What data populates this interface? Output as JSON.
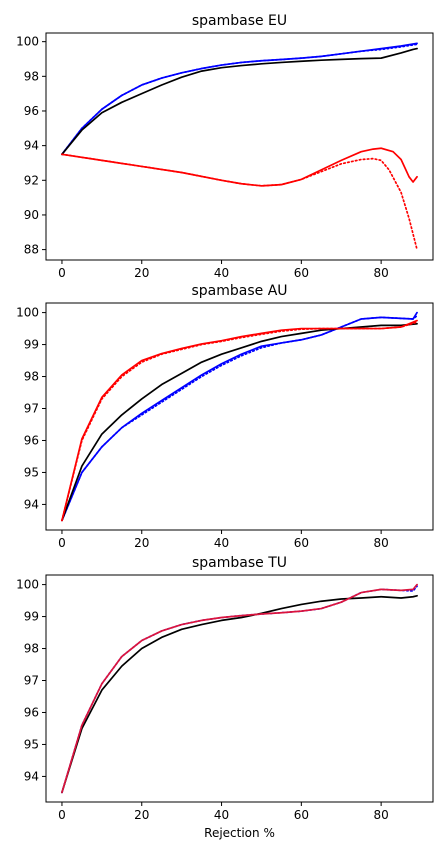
{
  "chart_data": [
    {
      "type": "line",
      "title": "spambase EU",
      "xlabel": "",
      "ylabel": "",
      "xlim": [
        -4,
        93
      ],
      "ylim": [
        87.4,
        100.5
      ],
      "xticks": [
        0,
        20,
        40,
        60,
        80
      ],
      "yticks": [
        88,
        90,
        92,
        94,
        96,
        98,
        100
      ],
      "grid": false,
      "series": [
        {
          "color": "#0000ff",
          "style": "dotted",
          "x": [
            0,
            5,
            10,
            15,
            20,
            25,
            30,
            35,
            40,
            45,
            50,
            55,
            60,
            65,
            70,
            75,
            80,
            85,
            89
          ],
          "y": [
            93.5,
            95.0,
            96.1,
            96.9,
            97.5,
            97.9,
            98.2,
            98.45,
            98.65,
            98.8,
            98.9,
            98.97,
            99.05,
            99.15,
            99.3,
            99.45,
            99.55,
            99.7,
            99.85
          ]
        },
        {
          "color": "#0000ff",
          "style": "solid",
          "x": [
            0,
            5,
            10,
            15,
            20,
            25,
            30,
            35,
            40,
            45,
            50,
            55,
            60,
            65,
            70,
            75,
            80,
            85,
            89
          ],
          "y": [
            93.5,
            95.0,
            96.1,
            96.9,
            97.5,
            97.9,
            98.2,
            98.45,
            98.65,
            98.8,
            98.9,
            98.97,
            99.05,
            99.15,
            99.3,
            99.45,
            99.6,
            99.75,
            99.9
          ]
        },
        {
          "color": "#000000",
          "style": "solid",
          "x": [
            0,
            5,
            10,
            15,
            20,
            25,
            30,
            35,
            40,
            45,
            50,
            55,
            60,
            65,
            70,
            75,
            80,
            85,
            88,
            89
          ],
          "y": [
            93.5,
            94.9,
            95.9,
            96.5,
            97.0,
            97.5,
            97.95,
            98.3,
            98.5,
            98.62,
            98.72,
            98.8,
            98.87,
            98.93,
            98.98,
            99.02,
            99.05,
            99.35,
            99.55,
            99.6
          ]
        },
        {
          "color": "#ff0000",
          "style": "dotted",
          "x": [
            0,
            10,
            20,
            30,
            40,
            45,
            50,
            55,
            60,
            65,
            70,
            75,
            78,
            80,
            82,
            85,
            87,
            89
          ],
          "y": [
            93.5,
            93.15,
            92.8,
            92.45,
            92.0,
            91.8,
            91.68,
            91.75,
            92.05,
            92.5,
            92.95,
            93.2,
            93.25,
            93.15,
            92.6,
            91.3,
            89.8,
            88.0
          ]
        },
        {
          "color": "#ff0000",
          "style": "solid",
          "x": [
            0,
            10,
            20,
            30,
            40,
            45,
            50,
            55,
            60,
            65,
            70,
            75,
            78,
            80,
            83,
            85,
            86,
            87,
            88,
            89
          ],
          "y": [
            93.5,
            93.15,
            92.8,
            92.45,
            92.0,
            91.8,
            91.68,
            91.75,
            92.05,
            92.6,
            93.15,
            93.65,
            93.8,
            93.85,
            93.65,
            93.2,
            92.7,
            92.2,
            91.9,
            92.2
          ]
        }
      ]
    },
    {
      "type": "line",
      "title": "spambase AU",
      "xlabel": "",
      "ylabel": "",
      "xlim": [
        -4,
        93
      ],
      "ylim": [
        93.2,
        100.3
      ],
      "xticks": [
        0,
        20,
        40,
        60,
        80
      ],
      "yticks": [
        94,
        95,
        96,
        97,
        98,
        99,
        100
      ],
      "grid": false,
      "series": [
        {
          "color": "#0000ff",
          "style": "dotted",
          "x": [
            0,
            5,
            10,
            15,
            20,
            25,
            30,
            35,
            40,
            45,
            50,
            55,
            60,
            65,
            70,
            75,
            80,
            85,
            88,
            89
          ],
          "y": [
            93.5,
            95.0,
            95.8,
            96.4,
            96.8,
            97.2,
            97.6,
            98.0,
            98.35,
            98.65,
            98.9,
            99.05,
            99.15,
            99.3,
            99.55,
            99.8,
            99.85,
            99.82,
            99.8,
            99.9
          ]
        },
        {
          "color": "#0000ff",
          "style": "solid",
          "x": [
            0,
            5,
            10,
            15,
            20,
            25,
            30,
            35,
            40,
            45,
            50,
            55,
            60,
            65,
            70,
            75,
            80,
            85,
            88,
            89
          ],
          "y": [
            93.5,
            95.0,
            95.8,
            96.4,
            96.85,
            97.25,
            97.65,
            98.05,
            98.4,
            98.7,
            98.95,
            99.05,
            99.15,
            99.3,
            99.55,
            99.8,
            99.85,
            99.82,
            99.8,
            100.0
          ]
        },
        {
          "color": "#000000",
          "style": "solid",
          "x": [
            0,
            5,
            10,
            15,
            20,
            25,
            30,
            35,
            40,
            45,
            50,
            55,
            60,
            65,
            70,
            75,
            80,
            85,
            89
          ],
          "y": [
            93.5,
            95.2,
            96.2,
            96.8,
            97.3,
            97.75,
            98.1,
            98.45,
            98.7,
            98.9,
            99.1,
            99.25,
            99.35,
            99.45,
            99.5,
            99.55,
            99.6,
            99.6,
            99.65
          ]
        },
        {
          "color": "#ff0000",
          "style": "dotted",
          "x": [
            0,
            5,
            10,
            15,
            20,
            25,
            30,
            35,
            40,
            45,
            50,
            55,
            60,
            65,
            70,
            75,
            80,
            85,
            89
          ],
          "y": [
            93.5,
            96.0,
            97.3,
            98.0,
            98.45,
            98.7,
            98.85,
            99.0,
            99.1,
            99.22,
            99.32,
            99.42,
            99.48,
            99.5,
            99.5,
            99.5,
            99.5,
            99.55,
            99.7
          ]
        },
        {
          "color": "#ff0000",
          "style": "solid",
          "x": [
            0,
            5,
            10,
            15,
            20,
            25,
            30,
            35,
            40,
            45,
            50,
            55,
            60,
            65,
            70,
            75,
            80,
            85,
            89
          ],
          "y": [
            93.5,
            96.05,
            97.35,
            98.05,
            98.5,
            98.72,
            98.88,
            99.02,
            99.12,
            99.25,
            99.35,
            99.45,
            99.5,
            99.5,
            99.5,
            99.5,
            99.5,
            99.55,
            99.75
          ]
        }
      ]
    },
    {
      "type": "line",
      "title": "spambase TU",
      "xlabel": "Rejection %",
      "ylabel": "",
      "xlim": [
        -4,
        93
      ],
      "ylim": [
        93.2,
        100.3
      ],
      "xticks": [
        0,
        20,
        40,
        60,
        80
      ],
      "yticks": [
        94,
        95,
        96,
        97,
        98,
        99,
        100
      ],
      "grid": false,
      "series": [
        {
          "color": "#0000ff",
          "style": "dotted",
          "x": [
            0,
            5,
            10,
            15,
            20,
            25,
            30,
            35,
            40,
            45,
            50,
            55,
            60,
            65,
            70,
            75,
            80,
            85,
            88,
            89
          ],
          "y": [
            93.5,
            95.6,
            96.9,
            97.75,
            98.25,
            98.55,
            98.75,
            98.88,
            98.97,
            99.03,
            99.08,
            99.12,
            99.17,
            99.25,
            99.45,
            99.75,
            99.85,
            99.82,
            99.8,
            99.95
          ]
        },
        {
          "color": "#000000",
          "style": "solid",
          "x": [
            0,
            5,
            10,
            15,
            20,
            25,
            30,
            35,
            40,
            45,
            50,
            55,
            60,
            65,
            70,
            75,
            80,
            85,
            88,
            89
          ],
          "y": [
            93.5,
            95.5,
            96.7,
            97.45,
            98.0,
            98.35,
            98.6,
            98.75,
            98.88,
            98.97,
            99.1,
            99.25,
            99.38,
            99.48,
            99.55,
            99.58,
            99.62,
            99.58,
            99.62,
            99.65
          ]
        },
        {
          "color": "#dc143c",
          "style": "solid",
          "x": [
            0,
            5,
            10,
            15,
            20,
            25,
            30,
            35,
            40,
            45,
            50,
            55,
            60,
            65,
            70,
            75,
            80,
            85,
            88,
            89
          ],
          "y": [
            93.5,
            95.6,
            96.9,
            97.75,
            98.25,
            98.55,
            98.75,
            98.88,
            98.97,
            99.03,
            99.08,
            99.12,
            99.17,
            99.25,
            99.45,
            99.75,
            99.85,
            99.82,
            99.85,
            100.0
          ]
        }
      ]
    }
  ]
}
